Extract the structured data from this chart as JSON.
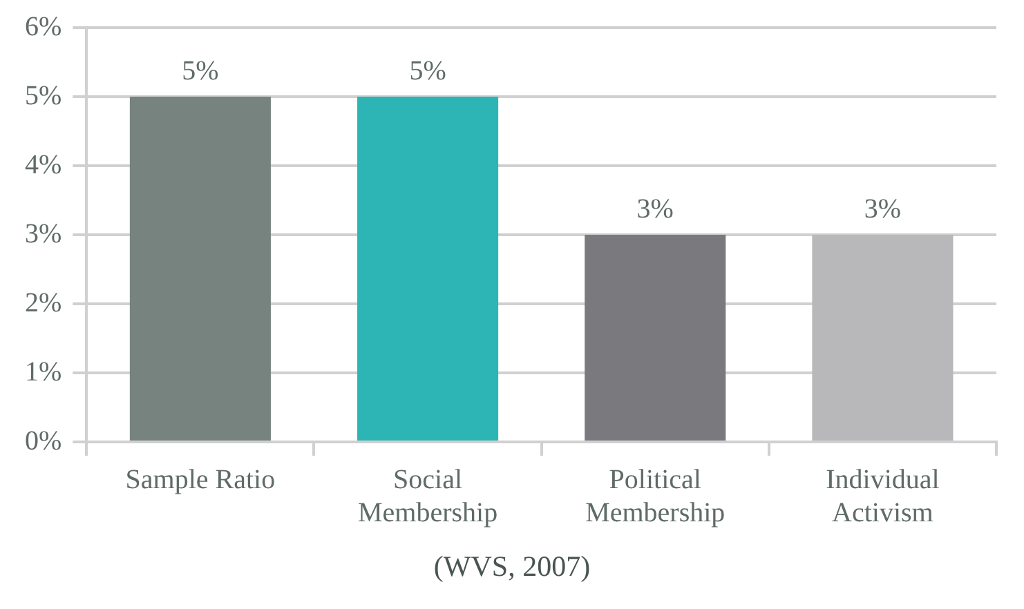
{
  "chart_data": {
    "type": "bar",
    "categories": [
      "Sample Ratio",
      "Social\nMembership",
      "Political\nMembership",
      "Individual\nActivism"
    ],
    "values": [
      5,
      5,
      3,
      3
    ],
    "colors": [
      "#76837f",
      "#2db5b5",
      "#7a797e",
      "#b8b8bb"
    ],
    "value_labels": [
      "5%",
      "5%",
      "3%",
      "3%"
    ],
    "ylim": [
      0,
      6
    ],
    "yticks": [
      {
        "value": 0,
        "label": "0%"
      },
      {
        "value": 1,
        "label": "1%"
      },
      {
        "value": 2,
        "label": "2%"
      },
      {
        "value": 3,
        "label": "3%"
      },
      {
        "value": 4,
        "label": "4%"
      },
      {
        "value": 5,
        "label": "5%"
      },
      {
        "value": 6,
        "label": "6%"
      }
    ],
    "grid": "y",
    "annotations": [
      "(WVS, 2007)"
    ]
  }
}
